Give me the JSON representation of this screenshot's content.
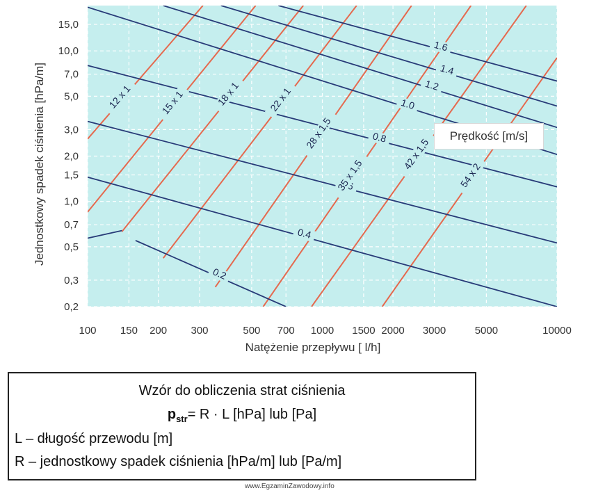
{
  "chart_data": {
    "type": "line",
    "x_scale": "log",
    "y_scale": "log",
    "xlabel": "Natężenie przepływu [ l/h]",
    "ylabel": "Jednostkowy spadek ciśnienia [hPa/m]",
    "xlim": [
      100,
      10000
    ],
    "ylim": [
      0.2,
      20
    ],
    "x_ticks": [
      {
        "v": 100,
        "label": "100"
      },
      {
        "v": 150,
        "label": "150"
      },
      {
        "v": 200,
        "label": "200"
      },
      {
        "v": 300,
        "label": "300"
      },
      {
        "v": 500,
        "label": "500"
      },
      {
        "v": 700,
        "label": "700"
      },
      {
        "v": 1000,
        "label": "1000"
      },
      {
        "v": 1500,
        "label": "1500"
      },
      {
        "v": 2000,
        "label": "2000"
      },
      {
        "v": 3000,
        "label": "3000"
      },
      {
        "v": 5000,
        "label": "5000"
      },
      {
        "v": 10000,
        "label": "10000"
      }
    ],
    "y_ticks": [
      {
        "v": 0.2,
        "label": "0,2"
      },
      {
        "v": 0.3,
        "label": "0,3"
      },
      {
        "v": 0.5,
        "label": "0,5"
      },
      {
        "v": 0.7,
        "label": "0,7"
      },
      {
        "v": 1.0,
        "label": "1,0"
      },
      {
        "v": 1.5,
        "label": "1,5"
      },
      {
        "v": 2.0,
        "label": "2,0"
      },
      {
        "v": 3.0,
        "label": "3,0"
      },
      {
        "v": 5.0,
        "label": "5,0"
      },
      {
        "v": 7.0,
        "label": "7,0"
      },
      {
        "v": 10.0,
        "label": "10,0"
      },
      {
        "v": 15.0,
        "label": "15,0"
      }
    ],
    "velocity_legend": "Prędkość [m/s]",
    "velocity_series": [
      {
        "name": "0.2",
        "points": [
          [
            160,
            0.55
          ],
          [
            700,
            0.2
          ]
        ]
      },
      {
        "name": "0.4",
        "points": [
          [
            100,
            1.45
          ],
          [
            10000,
            0.2
          ]
        ]
      },
      {
        "name": "0.6",
        "points": [
          [
            100,
            3.4
          ],
          [
            10000,
            0.53
          ]
        ]
      },
      {
        "name": "0.8",
        "points": [
          [
            100,
            8.0
          ],
          [
            10000,
            1.25
          ]
        ]
      },
      {
        "name": "1.0",
        "points": [
          [
            100,
            19.5
          ],
          [
            10000,
            2.05
          ]
        ]
      },
      {
        "name": "1.2",
        "points": [
          [
            210,
            20
          ],
          [
            10000,
            3.1
          ]
        ]
      },
      {
        "name": "1.4",
        "points": [
          [
            370,
            20
          ],
          [
            10000,
            4.3
          ]
        ]
      },
      {
        "name": "1.6",
        "points": [
          [
            650,
            20
          ],
          [
            10000,
            6.3
          ]
        ]
      }
    ],
    "velocity_extra_segment": {
      "name": "",
      "points": [
        [
          100,
          0.57
        ],
        [
          140,
          0.64
        ]
      ]
    },
    "pipe_series": [
      {
        "name": "12 x 1",
        "points": [
          [
            100,
            2.6
          ],
          [
            310,
            20
          ]
        ]
      },
      {
        "name": "15 x 1",
        "points": [
          [
            100,
            0.85
          ],
          [
            520,
            20
          ]
        ]
      },
      {
        "name": "18 x 1",
        "points": [
          [
            140,
            0.63
          ],
          [
            830,
            20
          ]
        ]
      },
      {
        "name": "22 x 1",
        "points": [
          [
            210,
            0.42
          ],
          [
            1400,
            20
          ]
        ]
      },
      {
        "name": "28 x 1,5",
        "points": [
          [
            350,
            0.27
          ],
          [
            2400,
            20
          ]
        ]
      },
      {
        "name": "35 x 1,5",
        "points": [
          [
            560,
            0.2
          ],
          [
            4300,
            20
          ]
        ]
      },
      {
        "name": "42 x 1,5",
        "points": [
          [
            900,
            0.2
          ],
          [
            7400,
            20
          ]
        ]
      },
      {
        "name": "54 x 2",
        "points": [
          [
            1800,
            0.2
          ],
          [
            10000,
            9.0
          ]
        ]
      }
    ],
    "colors": {
      "background": "#c5eeee",
      "velocity_line": "#283b78",
      "pipe_line": "#e5694e",
      "grid": "#ffffff"
    }
  },
  "legend_label": "Prędkość [m/s]",
  "formula": {
    "title": "Wzór do obliczenia strat ciśnienia",
    "symbol": "p",
    "subscript": "str",
    "equation": "= R · L  [hPa] lub [Pa]",
    "def_l": "L – długość przewodu [m]",
    "def_r": "R – jednostkowy spadek ciśnienia [hPa/m] lub [Pa/m]"
  },
  "watermark": "www.EgzaminZawodowy.info"
}
